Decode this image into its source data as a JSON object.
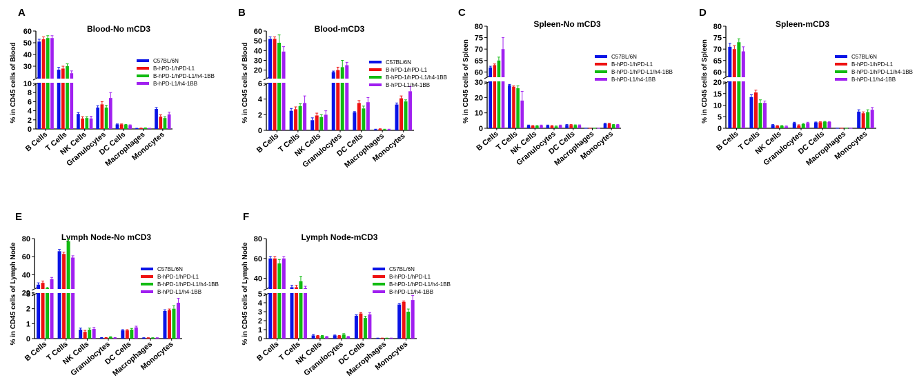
{
  "figure": {
    "legend": [
      {
        "label": "C57BL/6N",
        "color": "#0a14e6"
      },
      {
        "label": "B-hPD-1/hPD-L1",
        "color": "#ee1111"
      },
      {
        "label": "B-hPD-1/hPD-L1/h4-1BB",
        "color": "#11bb11"
      },
      {
        "label": "B-hPD-L1/h4-1BB",
        "color": "#a020f0"
      }
    ]
  },
  "chart_data": [
    {
      "panel": "A",
      "type": "bar",
      "title": "Blood-No mCD3",
      "ylabel": "% in CD45 cells of Blood",
      "categories": [
        "B Cells",
        "T Cells",
        "NK Cells",
        "Granulocytes",
        "DC Cells",
        "Macrophages",
        "Monocytes"
      ],
      "broken_axis": {
        "lower": [
          0,
          10
        ],
        "upper": [
          20,
          60
        ]
      },
      "ticks_lower": [
        0,
        2,
        4,
        6,
        8,
        10
      ],
      "ticks_upper": [
        30,
        40,
        50,
        60
      ],
      "series": [
        {
          "name": "C57BL/6N",
          "values": [
            51,
            27,
            3.3,
            4.7,
            1.0,
            0.1,
            4.4
          ],
          "errors": [
            2,
            2,
            0.3,
            0.4,
            0.1,
            0.05,
            0.3
          ]
        },
        {
          "name": "B-hPD-1/hPD-L1",
          "values": [
            53,
            28,
            2.3,
            5.4,
            1.0,
            0.15,
            2.7
          ],
          "errors": [
            2,
            2,
            0.4,
            0.6,
            0.1,
            0.05,
            0.4
          ]
        },
        {
          "name": "B-hPD-1/hPD-L1/h4-1BB",
          "values": [
            54,
            30,
            2.4,
            4.7,
            0.9,
            0.2,
            2.4
          ],
          "errors": [
            2,
            2,
            0.3,
            0.5,
            0.1,
            0.05,
            0.3
          ]
        },
        {
          "name": "B-hPD-L1/h4-1BB",
          "values": [
            54,
            24,
            2.3,
            6.8,
            0.8,
            0.1,
            3.2
          ],
          "errors": [
            2,
            2,
            0.5,
            1.2,
            0.1,
            0.05,
            0.5
          ]
        }
      ]
    },
    {
      "panel": "B",
      "type": "bar",
      "title": "Blood-mCD3",
      "ylabel": "% in CD45 cells of Blood",
      "categories": [
        "B Cells",
        "T Cells",
        "NK Cells",
        "Granulocytes",
        "DC Cells",
        "Macrophages",
        "Monocytes"
      ],
      "broken_axis": {
        "lower": [
          0,
          6
        ],
        "upper": [
          12,
          60
        ]
      },
      "ticks_lower": [
        0,
        2,
        4,
        6
      ],
      "ticks_upper": [
        20,
        30,
        40,
        50,
        60
      ],
      "series": [
        {
          "name": "C57BL/6N",
          "values": [
            52,
            2.5,
            1.3,
            18,
            2.3,
            0.1,
            3.3
          ],
          "errors": [
            2,
            0.3,
            0.3,
            1,
            0.1,
            0.05,
            0.2
          ]
        },
        {
          "name": "B-hPD-1/hPD-L1",
          "values": [
            52,
            2.7,
            1.9,
            20,
            3.5,
            0.15,
            4.1
          ],
          "errors": [
            2,
            0.3,
            0.3,
            3,
            0.3,
            0.05,
            0.3
          ]
        },
        {
          "name": "B-hPD-1/hPD-L1/h4-1BB",
          "values": [
            48,
            3.1,
            1.7,
            23,
            2.8,
            0.1,
            3.7
          ],
          "errors": [
            8,
            0.3,
            0.3,
            7,
            0.3,
            0.05,
            0.2
          ]
        },
        {
          "name": "B-hPD-L1/h4-1BB",
          "values": [
            39,
            3.5,
            2.0,
            25,
            3.6,
            0.1,
            5.0
          ],
          "errors": [
            5,
            0.9,
            0.5,
            3,
            0.6,
            0.05,
            0.6
          ]
        }
      ]
    },
    {
      "panel": "C",
      "type": "bar",
      "title": "Spleen-No mCD3",
      "ylabel": "% in CD45 cells of Spleen",
      "categories": [
        "B Cells",
        "T Cells",
        "NK Cells",
        "Granulocytes",
        "DC Cells",
        "Macrophages",
        "Monocytes"
      ],
      "broken_axis": {
        "lower": [
          0,
          30
        ],
        "upper": [
          58,
          80
        ]
      },
      "ticks_lower": [
        0,
        10,
        20,
        30
      ],
      "ticks_upper": [
        60,
        65,
        70,
        75,
        80
      ],
      "series": [
        {
          "name": "C57BL/6N",
          "values": [
            62,
            28,
            1.8,
            1.8,
            2.1,
            0.05,
            3.0
          ],
          "errors": [
            0.5,
            0.5,
            0.3,
            0.3,
            0.3,
            0.02,
            0.3
          ]
        },
        {
          "name": "B-hPD-1/hPD-L1",
          "values": [
            63,
            27,
            1.5,
            1.5,
            2.1,
            0.05,
            3.0
          ],
          "errors": [
            0.5,
            0.5,
            0.3,
            0.3,
            0.3,
            0.02,
            0.3
          ]
        },
        {
          "name": "B-hPD-1/hPD-L1/h4-1BB",
          "values": [
            65,
            26,
            1.5,
            1.2,
            1.9,
            0.05,
            2.2
          ],
          "errors": [
            1.5,
            1.5,
            0.3,
            0.3,
            0.3,
            0.02,
            0.3
          ]
        },
        {
          "name": "B-hPD-L1/h4-1BB",
          "values": [
            70,
            18,
            1.8,
            1.8,
            1.9,
            0.05,
            2.2
          ],
          "errors": [
            5,
            6,
            0.3,
            0.3,
            0.3,
            0.02,
            0.3
          ]
        }
      ]
    },
    {
      "panel": "D",
      "type": "bar",
      "title": "Spleen-mCD3",
      "ylabel": "% in CD45 cells of Spleen",
      "categories": [
        "B Cells",
        "T Cells",
        "NK Cells",
        "Granulocytes",
        "DC Cells",
        "Macrophages",
        "Monocytes"
      ],
      "broken_axis": {
        "lower": [
          0,
          20
        ],
        "upper": [
          58,
          80
        ]
      },
      "ticks_lower": [
        0,
        5,
        10,
        15,
        20
      ],
      "ticks_upper": [
        60,
        65,
        70,
        75,
        80
      ],
      "series": [
        {
          "name": "C57BL/6N",
          "values": [
            71,
            13.5,
            1.4,
            2.3,
            2.5,
            0.05,
            7.2
          ],
          "errors": [
            1.5,
            1.0,
            0.2,
            0.3,
            0.2,
            0.02,
            0.8
          ]
        },
        {
          "name": "B-hPD-1/hPD-L1",
          "values": [
            70,
            15.5,
            1.0,
            1.2,
            2.6,
            0.05,
            6.5
          ],
          "errors": [
            1.5,
            1.0,
            0.2,
            0.3,
            0.2,
            0.02,
            0.6
          ]
        },
        {
          "name": "B-hPD-1/hPD-L1/h4-1BB",
          "values": [
            73,
            11,
            1.0,
            1.8,
            2.8,
            0.05,
            7.0
          ],
          "errors": [
            1.5,
            1.3,
            0.2,
            0.3,
            0.2,
            0.02,
            1.0
          ]
        },
        {
          "name": "B-hPD-L1/h4-1BB",
          "values": [
            69,
            11,
            0.8,
            2.3,
            2.7,
            0.05,
            8.0
          ],
          "errors": [
            2.0,
            0.8,
            0.2,
            0.3,
            0.2,
            0.02,
            1.0
          ]
        }
      ]
    },
    {
      "panel": "E",
      "type": "bar",
      "title": "Lymph Node-No mCD3",
      "ylabel": "% in CD45 cells of Lymph Node",
      "categories": [
        "B Cells",
        "T Cells",
        "NK Cells",
        "Granulocytes",
        "DC Cells",
        "Macrophages",
        "Monocytes"
      ],
      "broken_axis": {
        "lower": [
          0,
          3
        ],
        "upper": [
          25,
          80
        ]
      },
      "ticks_lower": [
        0,
        1,
        2,
        3
      ],
      "ticks_upper": [
        20,
        40,
        60,
        80
      ],
      "series": [
        {
          "name": "C57BL/6N",
          "values": [
            29,
            66,
            0.6,
            0.05,
            0.55,
            0.05,
            1.85
          ],
          "errors": [
            2,
            2,
            0.1,
            0.02,
            0.05,
            0.01,
            0.08
          ]
        },
        {
          "name": "B-hPD-1/hPD-L1",
          "values": [
            31,
            63,
            0.45,
            0.05,
            0.55,
            0.05,
            1.9
          ],
          "errors": [
            2,
            2,
            0.1,
            0.02,
            0.05,
            0.01,
            0.08
          ]
        },
        {
          "name": "B-hPD-1/hPD-L1/h4-1BB",
          "values": [
            25,
            77,
            0.6,
            0.1,
            0.6,
            0.05,
            2.0
          ],
          "errors": [
            1,
            2,
            0.1,
            0.03,
            0.08,
            0.01,
            0.2
          ]
        },
        {
          "name": "B-hPD-L1/h4-1BB",
          "values": [
            35,
            59,
            0.65,
            0.05,
            0.75,
            0.05,
            2.4
          ],
          "errors": [
            2,
            2,
            0.1,
            0.02,
            0.08,
            0.01,
            0.3
          ]
        }
      ]
    },
    {
      "panel": "F",
      "type": "bar",
      "title": "Lymph Node-mCD3",
      "ylabel": "% in CD45 cells of Lymph Node",
      "categories": [
        "B Cells",
        "T Cells",
        "NK Cells",
        "Granulocytes",
        "DC Cells",
        "Macrophages",
        "Monocytes"
      ],
      "broken_axis": {
        "lower": [
          0,
          5
        ],
        "upper": [
          30,
          80
        ]
      },
      "ticks_lower": [
        0,
        1,
        2,
        3,
        4,
        5
      ],
      "ticks_upper": [
        40,
        60,
        80
      ],
      "series": [
        {
          "name": "C57BL/6N",
          "values": [
            60,
            31,
            0.35,
            0.35,
            2.55,
            0.05,
            3.8
          ],
          "errors": [
            2,
            2,
            0.1,
            0.05,
            0.1,
            0.01,
            0.1
          ]
        },
        {
          "name": "B-hPD-1/hPD-L1",
          "values": [
            60,
            31,
            0.3,
            0.3,
            2.8,
            0.05,
            4.1
          ],
          "errors": [
            2,
            2,
            0.05,
            0.05,
            0.1,
            0.01,
            0.1
          ]
        },
        {
          "name": "B-hPD-1/hPD-L1/h4-1BB",
          "values": [
            55,
            37,
            0.3,
            0.45,
            2.3,
            0.05,
            3.0
          ],
          "errors": [
            4,
            5,
            0.05,
            0.1,
            0.2,
            0.01,
            0.3
          ]
        },
        {
          "name": "B-hPD-L1/h4-1BB",
          "values": [
            60,
            30,
            0.2,
            0.2,
            2.7,
            0.05,
            4.3
          ],
          "errors": [
            2,
            2,
            0.05,
            0.05,
            0.2,
            0.01,
            0.5
          ]
        }
      ]
    }
  ]
}
